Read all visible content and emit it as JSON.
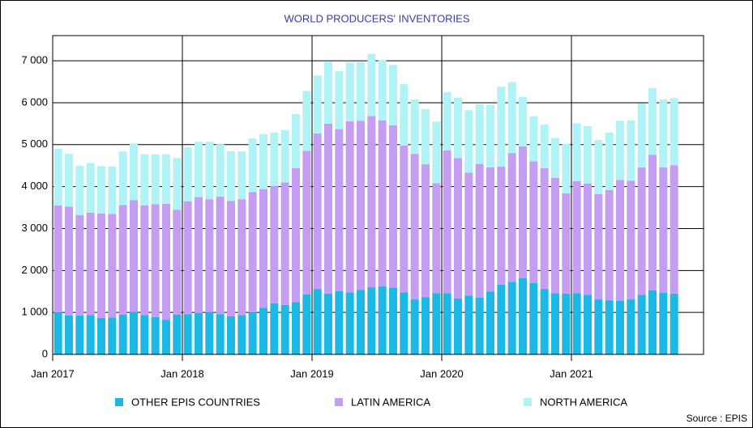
{
  "chart_data": {
    "type": "stacked_bar",
    "title": "WORLD PRODUCERS' INVENTORIES",
    "source": "Source : EPIS",
    "categories": [
      "Jan 2017",
      null,
      null,
      null,
      null,
      null,
      null,
      null,
      null,
      null,
      null,
      null,
      "Jan 2018",
      null,
      null,
      null,
      null,
      null,
      null,
      null,
      null,
      null,
      null,
      null,
      "Jan 2019",
      null,
      null,
      null,
      null,
      null,
      null,
      null,
      null,
      null,
      null,
      null,
      "Jan 2020",
      null,
      null,
      null,
      null,
      null,
      null,
      null,
      null,
      null,
      null,
      null,
      "Jan 2021",
      null,
      null,
      null,
      null,
      null,
      null,
      null,
      null,
      null
    ],
    "series": [
      {
        "name": "OTHER EPIS COUNTRIES",
        "color": "#1bb9e3",
        "values": [
          1000,
          930,
          930,
          940,
          870,
          880,
          950,
          1010,
          940,
          890,
          820,
          950,
          960,
          990,
          1000,
          960,
          910,
          940,
          1000,
          1110,
          1220,
          1180,
          1250,
          1430,
          1560,
          1450,
          1510,
          1480,
          1540,
          1600,
          1620,
          1590,
          1480,
          1310,
          1360,
          1460,
          1460,
          1330,
          1400,
          1350,
          1500,
          1660,
          1730,
          1820,
          1700,
          1560,
          1460,
          1450,
          1460,
          1420,
          1310,
          1290,
          1280,
          1310,
          1420,
          1530,
          1470,
          1450
        ]
      },
      {
        "name": "LATIN AMERICA",
        "color": "#c59df2",
        "values": [
          2550,
          2590,
          2390,
          2440,
          2490,
          2470,
          2610,
          2670,
          2610,
          2690,
          2770,
          2500,
          2690,
          2760,
          2700,
          2800,
          2750,
          2760,
          2870,
          2830,
          2790,
          2920,
          3190,
          3420,
          3710,
          4050,
          3860,
          4080,
          4030,
          4080,
          3960,
          3870,
          3500,
          3470,
          3170,
          2620,
          3400,
          3350,
          2930,
          3190,
          2960,
          2820,
          3070,
          3140,
          2900,
          2880,
          2750,
          2390,
          2670,
          2650,
          2510,
          2630,
          2880,
          2830,
          3040,
          3230,
          2990,
          3060
        ]
      },
      {
        "name": "NORTH AMERICA",
        "color": "#aff3f7",
        "values": [
          1350,
          1260,
          1180,
          1180,
          1130,
          1130,
          1280,
          1350,
          1220,
          1190,
          1180,
          1230,
          1290,
          1320,
          1370,
          1250,
          1180,
          1140,
          1280,
          1310,
          1280,
          1250,
          1290,
          1430,
          1380,
          1470,
          1380,
          1400,
          1400,
          1480,
          1430,
          1440,
          1460,
          1300,
          1320,
          1470,
          1390,
          1440,
          1490,
          1420,
          1490,
          1900,
          1690,
          1180,
          1080,
          1040,
          950,
          1180,
          1380,
          1370,
          1290,
          1370,
          1410,
          1440,
          1530,
          1590,
          1620,
          1600
        ]
      }
    ],
    "ylim": [
      0,
      7600
    ],
    "yticks": [
      0,
      {
        "value": 1000,
        "label": "1 000"
      },
      {
        "value": 2000,
        "label": "2 000"
      },
      {
        "value": 3000,
        "label": "3 000"
      },
      {
        "value": 4000,
        "label": "4 000"
      },
      {
        "value": 5000,
        "label": "5 000"
      },
      {
        "value": 6000,
        "label": "6 000"
      },
      {
        "value": 7000,
        "label": "7 000"
      }
    ],
    "grid": true
  }
}
